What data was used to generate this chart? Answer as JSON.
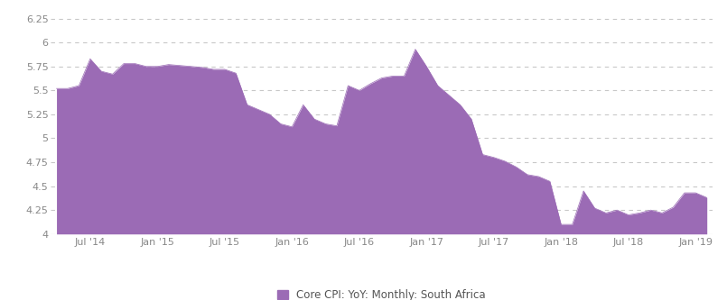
{
  "legend_label": "Core CPI: YoY: Monthly: South Africa",
  "fill_color": "#9B6BB5",
  "line_color": "#9B6BB5",
  "background_color": "#ffffff",
  "grid_color": "#c8c8c8",
  "ylim": [
    4.0,
    6.35
  ],
  "yticks": [
    4.0,
    4.25,
    4.5,
    4.75,
    5.0,
    5.25,
    5.5,
    5.75,
    6.0,
    6.25
  ],
  "xtick_labels": [
    "Jul '14",
    "Jan '15",
    "Jul '15",
    "Jan '16",
    "Jul '16",
    "Jan '17",
    "Jul '17",
    "Jan '18",
    "Jul '18",
    "Jan '19"
  ],
  "values": [
    5.52,
    5.52,
    5.55,
    5.83,
    5.7,
    5.67,
    5.78,
    5.78,
    5.75,
    5.75,
    5.77,
    5.76,
    5.75,
    5.74,
    5.72,
    5.72,
    5.68,
    5.35,
    5.3,
    5.25,
    5.15,
    5.12,
    5.35,
    5.2,
    5.15,
    5.13,
    5.55,
    5.5,
    5.57,
    5.63,
    5.65,
    5.65,
    5.93,
    5.75,
    5.55,
    5.45,
    5.35,
    5.2,
    4.83,
    4.8,
    4.76,
    4.7,
    4.62,
    4.6,
    4.55,
    4.1,
    4.1,
    4.45,
    4.27,
    4.22,
    4.25,
    4.2,
    4.22,
    4.25,
    4.22,
    4.28,
    4.43,
    4.43,
    4.38
  ]
}
